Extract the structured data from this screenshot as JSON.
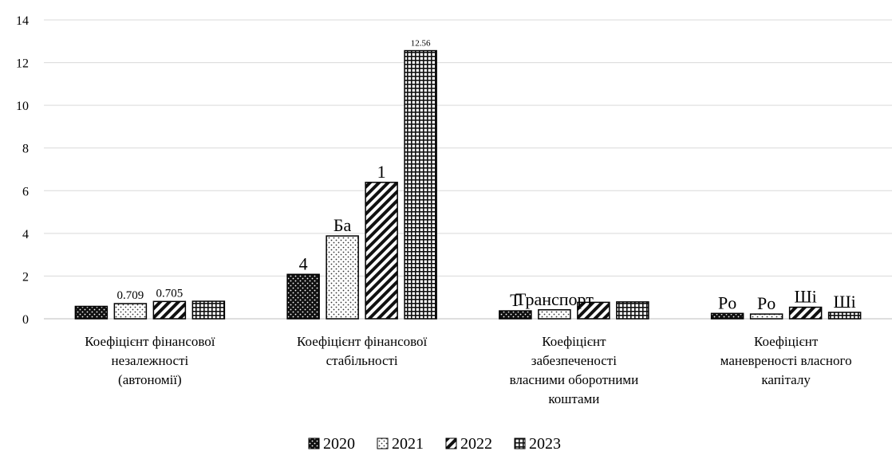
{
  "chart_data": {
    "type": "bar",
    "categories": [
      [
        "Коефіцієнт фінансової",
        "незалежності",
        "(автономії)"
      ],
      [
        "Коефіцієнт фінансової",
        "стабільності"
      ],
      [
        "Коефіцієнт",
        "забезпеченості",
        "власними оборотними",
        "коштами"
      ],
      [
        "Коефіцієнт",
        "маневреності власного",
        "капіталу"
      ]
    ],
    "series": [
      {
        "name": "2020",
        "pattern": "dots-dark",
        "values": [
          0.58,
          2.08,
          0.37,
          0.25
        ]
      },
      {
        "name": "2021",
        "pattern": "dots-light",
        "values": [
          0.71,
          3.88,
          0.42,
          0.22
        ]
      },
      {
        "name": "2022",
        "pattern": "diagonal",
        "values": [
          0.81,
          6.39,
          0.77,
          0.54
        ]
      },
      {
        "name": "2023",
        "pattern": "grid",
        "values": [
          0.82,
          12.56,
          0.79,
          0.3
        ]
      }
    ],
    "data_labels": [
      [
        "",
        "0.709",
        "0.705",
        ""
      ],
      [
        "4",
        "Бa",
        "1",
        "12.56"
      ],
      [
        "T",
        "Транспорт",
        "",
        ""
      ],
      [
        "Pо",
        "Pо",
        "Ші",
        "Ші"
      ]
    ],
    "ylim": [
      0,
      14
    ],
    "yticks": [
      0,
      2,
      4,
      6,
      8,
      10,
      12,
      14
    ],
    "grid": true,
    "legend_position": "bottom"
  }
}
